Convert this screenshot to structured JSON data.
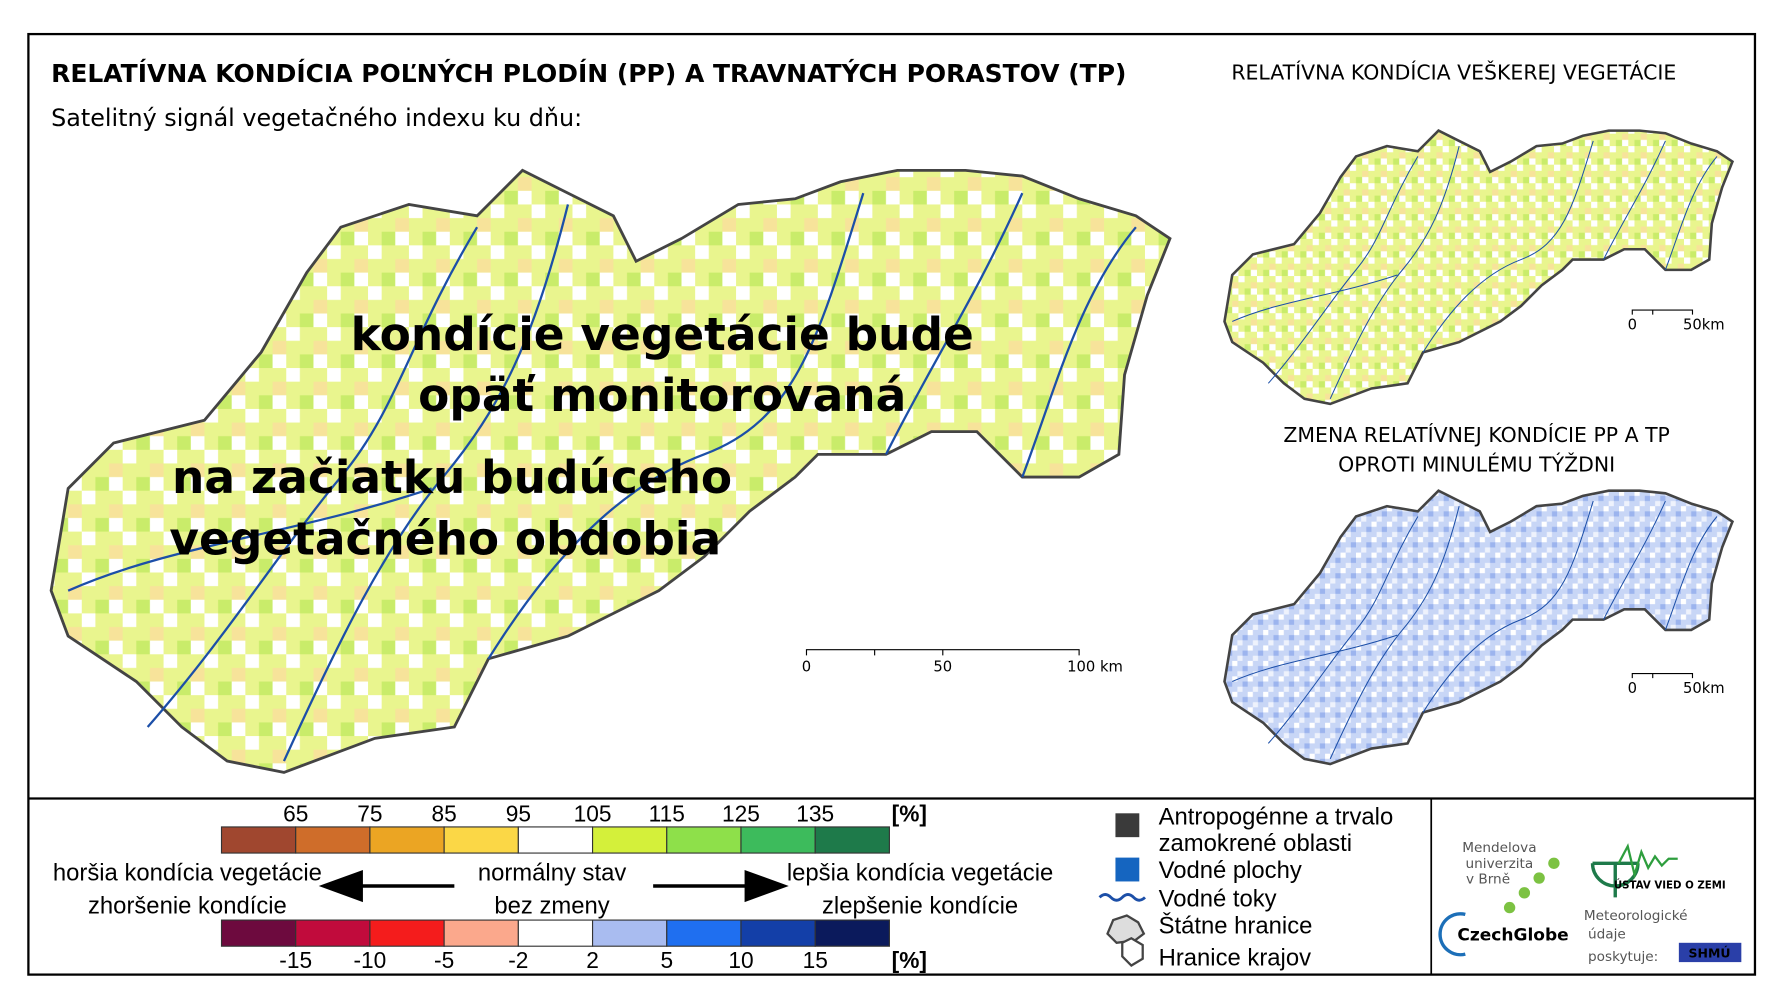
{
  "header": {
    "title": "RELATÍVNA KONDÍCIA POĽNÝCH PLODÍN (PP) A TRAVNATÝCH PORASTOV (TP)",
    "subtitle": "Satelitný signál vegetačného indexu ku dňu:",
    "side_title": "RELATÍVNA KONDÍCIA VEŠKEREJ VEGETÁCIE",
    "side_title_2": [
      "ZMENA RELATÍVNEJ KONDÍCIE PP A TP",
      "OPROTI MINULÉMU TÝŽDNI"
    ]
  },
  "overlay": {
    "lines": [
      "kondície vegetácie bude",
      "opäť monitorovaná",
      "na začiatku budúceho",
      "vegetačného obdobia"
    ]
  },
  "scale_main": [
    "0",
    "50",
    "100 km"
  ],
  "scale_small": [
    "0",
    "50km"
  ],
  "legend": {
    "top_scale": {
      "labels": [
        "65",
        "75",
        "85",
        "95",
        "105",
        "115",
        "125",
        "135"
      ],
      "unit": "[%]",
      "colors": [
        "#a0472f",
        "#cf6d2a",
        "#eba523",
        "#fbd746",
        "#ffffff",
        "#d4f03a",
        "#8ee04a",
        "#3dbb5c",
        "#1e7a4a"
      ]
    },
    "bottom_scale": {
      "labels": [
        "-15",
        "-10",
        "-5",
        "-2",
        "2",
        "5",
        "10",
        "15"
      ],
      "unit": "[%]",
      "colors": [
        "#6d0a3e",
        "#c10b3c",
        "#f41c1c",
        "#fba88c",
        "#ffffff",
        "#a9bcf0",
        "#1f6ff0",
        "#133fa8",
        "#0b1a5c"
      ]
    },
    "left": [
      "horšia kondícia vegetácie",
      "zhoršenie kondície"
    ],
    "center": [
      "normálny stav",
      "bez zmeny"
    ],
    "right": [
      "lepšia kondícia vegetácie",
      "zlepšenie kondície"
    ],
    "items": [
      [
        "Antropogénne a trvalo",
        "zamokrené oblasti"
      ],
      [
        "Vodné plochy"
      ],
      [
        "Vodné toky"
      ],
      [
        "Štátne hranice"
      ],
      [
        "Hranice krajov"
      ]
    ]
  },
  "logos": {
    "mendel": [
      "Mendelova",
      "univerzita",
      "v Brně"
    ],
    "czechglobe": "CzechGlobe",
    "uvz": "ÚSTAV VIED O ZEMI",
    "meteo": [
      "Meteorologické",
      "údaje",
      "poskytuje:"
    ],
    "shmu": "SHMÚ"
  }
}
